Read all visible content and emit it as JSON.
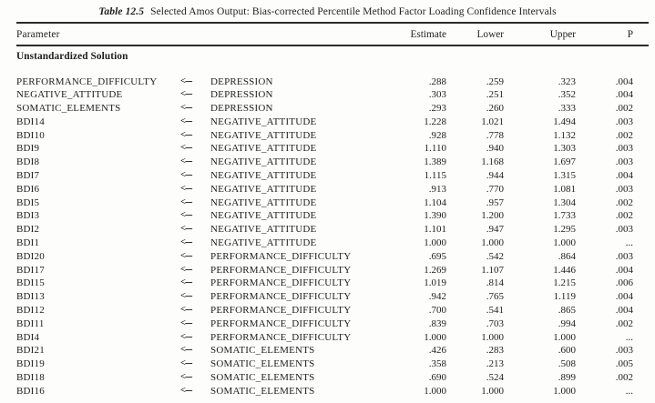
{
  "page": {
    "title_label": "Table 12.5",
    "title_text": "Selected Amos Output: Bias-corrected Percentile Method Factor Loading Confidence Intervals"
  },
  "table": {
    "headers": {
      "parameter": "Parameter",
      "estimate": "Estimate",
      "lower": "Lower",
      "upper": "Upper",
      "p": "P"
    },
    "section_header": "Unstandardized Solution",
    "arrow": "<---",
    "rows": [
      {
        "param": "PERFORMANCE_DIFFICULTY",
        "target": "DEPRESSION",
        "estimate": ".288",
        "lower": ".259",
        "upper": ".323",
        "p": ".004"
      },
      {
        "param": "NEGATIVE_ATTITUDE",
        "target": "DEPRESSION",
        "estimate": ".303",
        "lower": ".251",
        "upper": ".352",
        "p": ".004"
      },
      {
        "param": "SOMATIC_ELEMENTS",
        "target": "DEPRESSION",
        "estimate": ".293",
        "lower": ".260",
        "upper": ".333",
        "p": ".002"
      },
      {
        "param": "BDI14",
        "target": "NEGATIVE_ATTITUDE",
        "estimate": "1.228",
        "lower": "1.021",
        "upper": "1.494",
        "p": ".003"
      },
      {
        "param": "BDI10",
        "target": "NEGATIVE_ATTITUDE",
        "estimate": ".928",
        "lower": ".778",
        "upper": "1.132",
        "p": ".002"
      },
      {
        "param": "BDI9",
        "target": "NEGATIVE_ATTITUDE",
        "estimate": "1.110",
        "lower": ".940",
        "upper": "1.303",
        "p": ".003"
      },
      {
        "param": "BDI8",
        "target": "NEGATIVE_ATTITUDE",
        "estimate": "1.389",
        "lower": "1.168",
        "upper": "1.697",
        "p": ".003"
      },
      {
        "param": "BDI7",
        "target": "NEGATIVE_ATTITUDE",
        "estimate": "1.115",
        "lower": ".944",
        "upper": "1.315",
        "p": ".004"
      },
      {
        "param": "BDI6",
        "target": "NEGATIVE_ATTITUDE",
        "estimate": ".913",
        "lower": ".770",
        "upper": "1.081",
        "p": ".003"
      },
      {
        "param": "BDI5",
        "target": "NEGATIVE_ATTITUDE",
        "estimate": "1.104",
        "lower": ".957",
        "upper": "1.304",
        "p": ".002"
      },
      {
        "param": "BDI3",
        "target": "NEGATIVE_ATTITUDE",
        "estimate": "1.390",
        "lower": "1.200",
        "upper": "1.733",
        "p": ".002"
      },
      {
        "param": "BDI2",
        "target": "NEGATIVE_ATTITUDE",
        "estimate": "1.101",
        "lower": ".947",
        "upper": "1.295",
        "p": ".003"
      },
      {
        "param": "BDI1",
        "target": "NEGATIVE_ATTITUDE",
        "estimate": "1.000",
        "lower": "1.000",
        "upper": "1.000",
        "p": "..."
      },
      {
        "param": "BDI20",
        "target": "PERFORMANCE_DIFFICULTY",
        "estimate": ".695",
        "lower": ".542",
        "upper": ".864",
        "p": ".003"
      },
      {
        "param": "BDI17",
        "target": "PERFORMANCE_DIFFICULTY",
        "estimate": "1.269",
        "lower": "1.107",
        "upper": "1.446",
        "p": ".004"
      },
      {
        "param": "BDI15",
        "target": "PERFORMANCE_DIFFICULTY",
        "estimate": "1.019",
        "lower": ".814",
        "upper": "1.215",
        "p": ".006"
      },
      {
        "param": "BDI13",
        "target": "PERFORMANCE_DIFFICULTY",
        "estimate": ".942",
        "lower": ".765",
        "upper": "1.119",
        "p": ".004"
      },
      {
        "param": "BDI12",
        "target": "PERFORMANCE_DIFFICULTY",
        "estimate": ".700",
        "lower": ".541",
        "upper": ".865",
        "p": ".004"
      },
      {
        "param": "BDI11",
        "target": "PERFORMANCE_DIFFICULTY",
        "estimate": ".839",
        "lower": ".703",
        "upper": ".994",
        "p": ".002"
      },
      {
        "param": "BDI4",
        "target": "PERFORMANCE_DIFFICULTY",
        "estimate": "1.000",
        "lower": "1.000",
        "upper": "1.000",
        "p": "..."
      },
      {
        "param": "BDI21",
        "target": "SOMATIC_ELEMENTS",
        "estimate": ".426",
        "lower": ".283",
        "upper": ".600",
        "p": ".003"
      },
      {
        "param": "BDI19",
        "target": "SOMATIC_ELEMENTS",
        "estimate": ".358",
        "lower": ".213",
        "upper": ".508",
        "p": ".005"
      },
      {
        "param": "BDI18",
        "target": "SOMATIC_ELEMENTS",
        "estimate": ".690",
        "lower": ".524",
        "upper": ".899",
        "p": ".002"
      },
      {
        "param": "BDI16",
        "target": "SOMATIC_ELEMENTS",
        "estimate": "1.000",
        "lower": "1.000",
        "upper": "1.000",
        "p": "..."
      }
    ]
  },
  "colors": {
    "text": "#1e1e1e",
    "rule": "#2b2b2b",
    "background": "#fdfdfc"
  }
}
